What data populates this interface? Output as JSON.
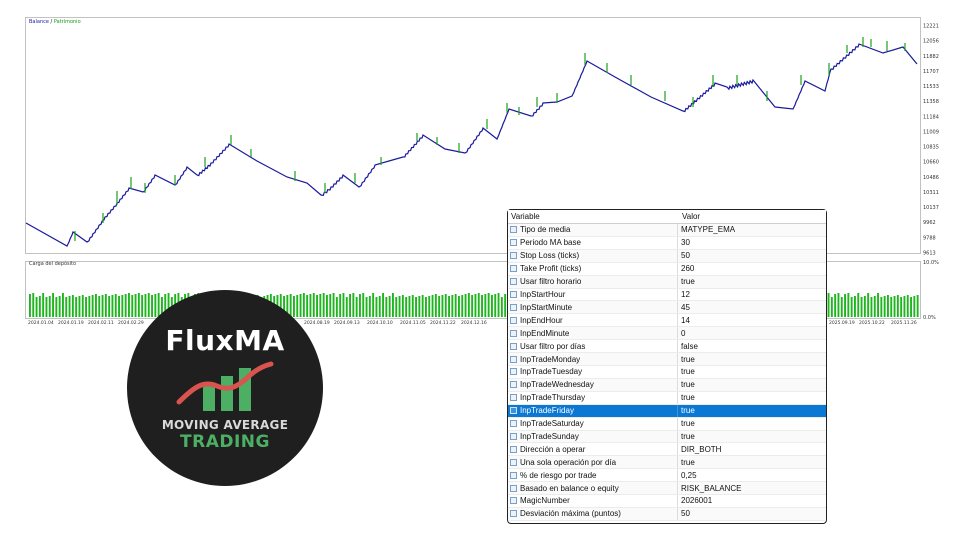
{
  "chart": {
    "legend_balance": "Balance",
    "legend_separator": " / ",
    "legend_equity": "Patrimonio",
    "sub_label": "Carga del depósito",
    "y_ticks": [
      "12221",
      "12056",
      "11882",
      "11707",
      "11533",
      "11358",
      "11184",
      "11009",
      "10835",
      "10660",
      "10486",
      "10311",
      "10137",
      "9962",
      "9788",
      "9613"
    ],
    "sub_y_ticks": [
      "10.0%",
      "0.0%"
    ],
    "x_ticks": [
      "2024.01.04",
      "2024.01.19",
      "2024.02.11",
      "2024.02.29",
      "2024.08.19",
      "2024.09.13",
      "2024.10.10",
      "2024.11.05",
      "2024.11.22",
      "2024.12.16",
      "2025.09.19",
      "2025.10.22",
      "2025.11.26"
    ],
    "colors": {
      "balance": "#1a1a9e",
      "equity": "#1aa31a",
      "load": "#1fb51f"
    }
  },
  "logo": {
    "title": "FluxMA",
    "line1": "MOVING AVERAGE",
    "line2": "TRADING",
    "colors": {
      "bg": "#1f1f1f",
      "bars": "#4caf64",
      "wave": "#d9534f"
    }
  },
  "params": {
    "col_variable": "Variable",
    "col_value": "Valor",
    "rows": [
      {
        "name": "Tipo de media",
        "value": "MATYPE_EMA"
      },
      {
        "name": "Periodo MA base",
        "value": "30"
      },
      {
        "name": "Stop Loss (ticks)",
        "value": "50"
      },
      {
        "name": "Take Profit (ticks)",
        "value": "260"
      },
      {
        "name": "Usar filtro horario",
        "value": "true"
      },
      {
        "name": "InpStartHour",
        "value": "12"
      },
      {
        "name": "InpStartMinute",
        "value": "45"
      },
      {
        "name": "InpEndHour",
        "value": "14"
      },
      {
        "name": "InpEndMinute",
        "value": "0"
      },
      {
        "name": "Usar filtro por días",
        "value": "false"
      },
      {
        "name": "InpTradeMonday",
        "value": "true"
      },
      {
        "name": "InpTradeTuesday",
        "value": "true"
      },
      {
        "name": "InpTradeWednesday",
        "value": "true"
      },
      {
        "name": "InpTradeThursday",
        "value": "true"
      },
      {
        "name": "InpTradeFriday",
        "value": "true",
        "selected": true
      },
      {
        "name": "InpTradeSaturday",
        "value": "true"
      },
      {
        "name": "InpTradeSunday",
        "value": "true"
      },
      {
        "name": "Dirección a operar",
        "value": "DIR_BOTH"
      },
      {
        "name": "Una sola operación por día",
        "value": "true"
      },
      {
        "name": "% de riesgo por trade",
        "value": "0,25"
      },
      {
        "name": "Basado en balance o equity",
        "value": "RISK_BALANCE"
      },
      {
        "name": "MagicNumber",
        "value": "2026001"
      },
      {
        "name": "Desviación máxima (puntos)",
        "value": "50"
      }
    ]
  }
}
